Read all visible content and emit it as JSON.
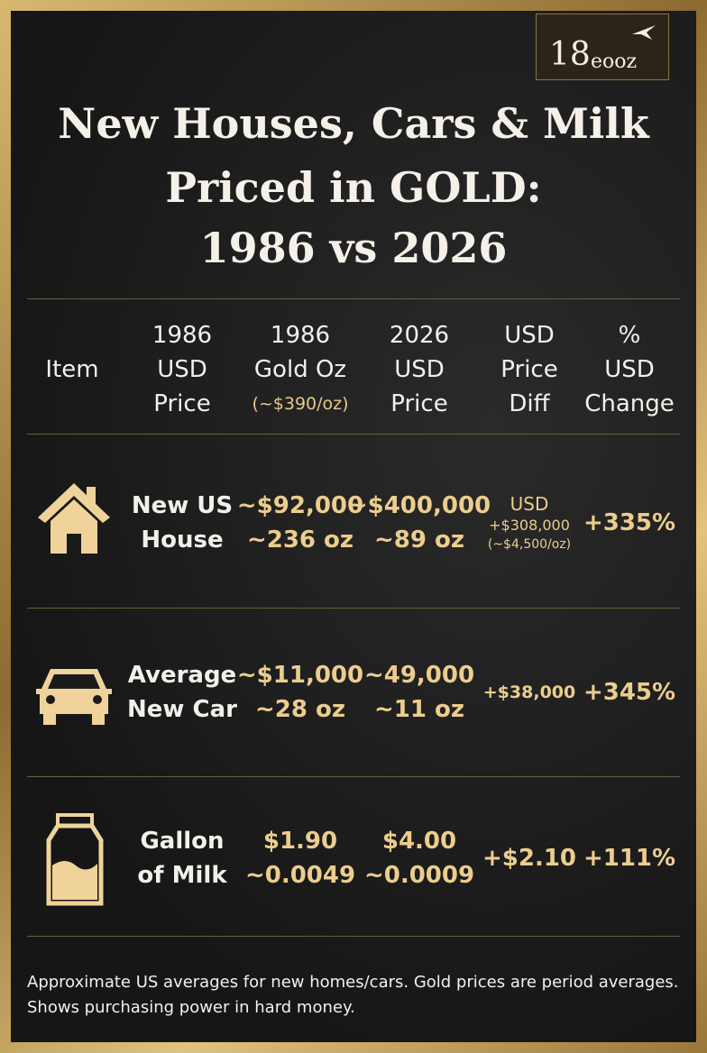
{
  "logo": {
    "number": "18",
    "word": "eooz"
  },
  "title": [
    "New Houses, Cars & Milk",
    "Priced in GOLD:",
    "1986 vs 2026"
  ],
  "table": {
    "header": [
      [
        "Item"
      ],
      [
        "1986",
        "USD",
        "Price"
      ],
      [
        "1986",
        "Gold Oz",
        "(~$390/oz)"
      ],
      [
        "2026",
        "USD",
        "Price"
      ],
      [
        "USD",
        "Price",
        "Diff"
      ],
      [
        "%",
        "USD",
        "Change"
      ]
    ],
    "rows": [
      {
        "item": [
          "New US",
          "House"
        ],
        "cells": [
          [
            "~$92,000",
            "~236 oz"
          ],
          [
            "~$400,000",
            "~89 oz"
          ],
          [
            "USD",
            "+$308,000",
            "(~$4,500/oz)"
          ],
          [
            "+335%"
          ]
        ]
      },
      {
        "item": [
          "Average",
          "New Car"
        ],
        "cells": [
          [
            "~$11,000",
            "~28 oz"
          ],
          [
            "~49,000",
            "~11 oz"
          ],
          [
            "+$38,000"
          ],
          [
            "+345%"
          ]
        ]
      },
      {
        "item": [
          "Gallon",
          "of Milk"
        ],
        "cells": [
          [
            "$1.90",
            "~0.0049"
          ],
          [
            "$4.00",
            "~0.0009"
          ],
          [
            "+$2.10"
          ],
          [
            "+111%"
          ]
        ]
      }
    ]
  },
  "footnote": "Approximate US averages for new homes/cars. Gold prices are period averages. Shows purchasing power in hard money."
}
